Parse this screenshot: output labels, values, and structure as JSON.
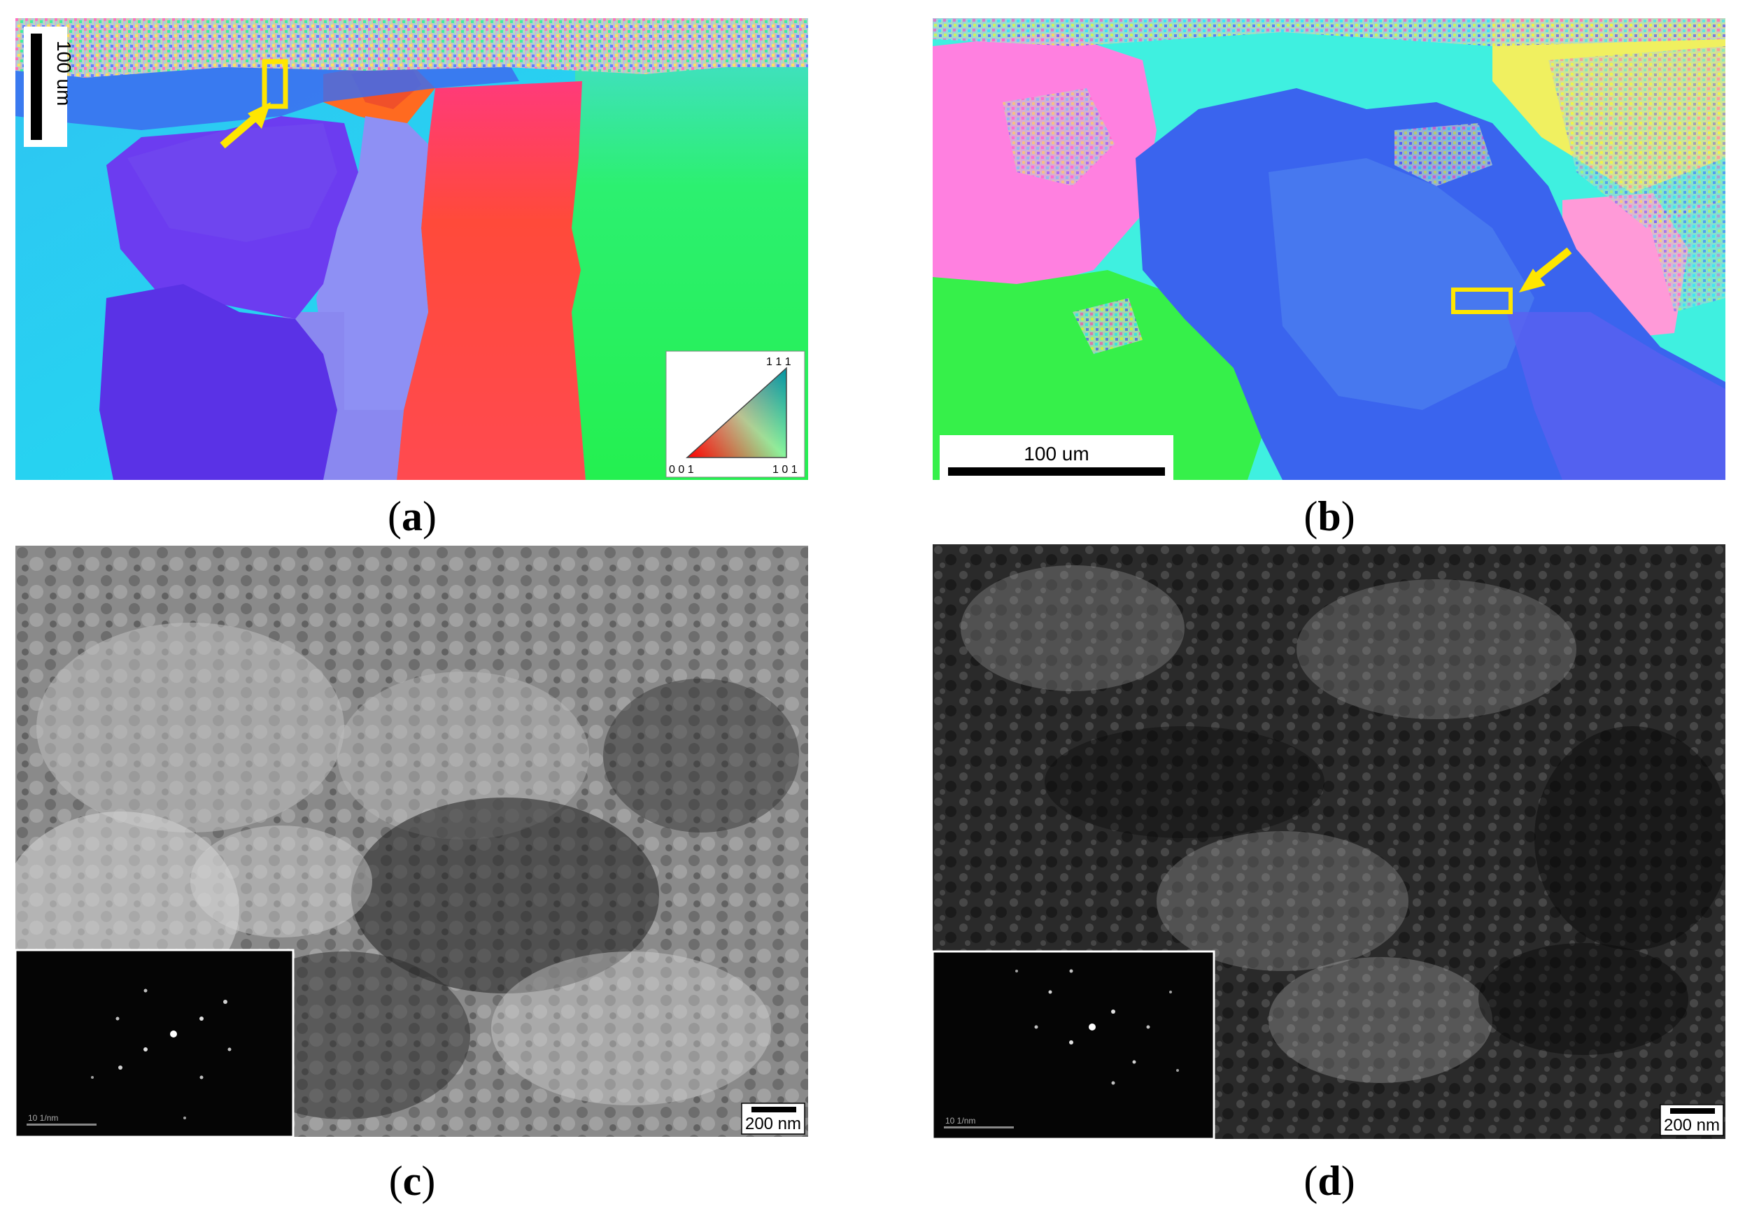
{
  "panels": {
    "a": {
      "label": "a",
      "scale_bar": "100 um",
      "ipf_legend": {
        "top": "1 1 1",
        "left": "0 0 1",
        "right": "1 0 1"
      },
      "colors": {
        "cyan": "#1fd2f0",
        "violet": "#6a3cf0",
        "periwinkle": "#8e90f2",
        "red": "#ff4a4a",
        "orange": "#ff6a1f",
        "green": "#29f05a",
        "yellow_marker": "#ffe600"
      }
    },
    "b": {
      "label": "b",
      "scale_bar": "100 um",
      "colors": {
        "blue": "#3f6cf0",
        "pink": "#ff7ae0",
        "green": "#33f04a",
        "cyan": "#3ff0e6",
        "yellow": "#f0f05a",
        "yellow_marker": "#ffe600"
      }
    },
    "c": {
      "label": "c",
      "scale_bar": "200 nm",
      "diffraction_scale": "10 1/nm"
    },
    "d": {
      "label": "d",
      "scale_bar": "200 nm",
      "diffraction_scale": "10 1/nm"
    }
  }
}
